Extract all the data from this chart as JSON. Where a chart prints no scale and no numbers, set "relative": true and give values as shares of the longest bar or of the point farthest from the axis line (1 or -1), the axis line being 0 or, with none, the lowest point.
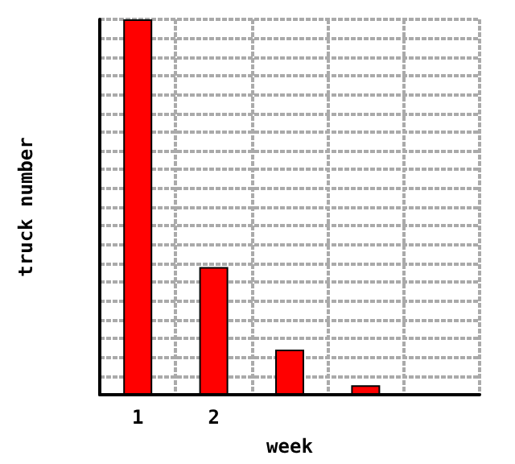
{
  "chart_data": {
    "type": "bar",
    "xlabel": "week",
    "ylabel": "truck number",
    "relative": true,
    "categories": [
      "1",
      "2",
      null,
      null,
      null
    ],
    "values": [
      1,
      0.34,
      0.12,
      0.025,
      null
    ],
    "color": "#ff0000",
    "grid": true
  }
}
